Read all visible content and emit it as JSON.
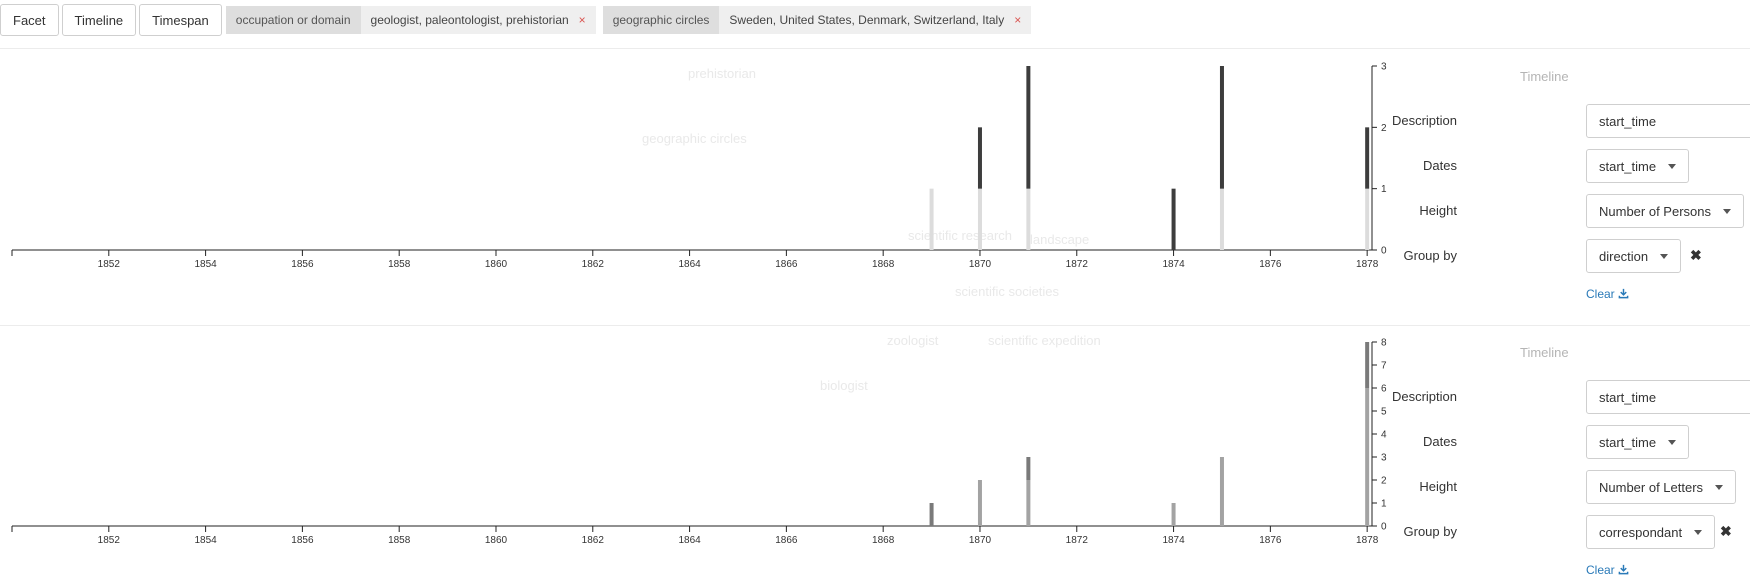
{
  "toolbar": {
    "buttons": [
      "Facet",
      "Timeline",
      "Timespan"
    ],
    "filters": [
      {
        "key": "occupation or domain",
        "value": "geologist, paleontologist, prehistorian",
        "remove": "×"
      },
      {
        "key": "geographic circles",
        "value": "Sweden, United States, Denmark, Switzerland, Italy",
        "remove": "×"
      }
    ]
  },
  "ghost_labels": [
    "prehistorian",
    "geographic circles",
    "scientific research",
    "landscape",
    "scientific societies",
    "zoologist",
    "scientific expedition",
    "biologist"
  ],
  "colors": {
    "series_dark": "#3d3d3d",
    "series_light": "#dcdcdc",
    "series_mid": "#9b9b9b",
    "accent": "#2a7ab8",
    "remove_x": "#d9534f"
  },
  "panels": [
    {
      "title": "Timeline",
      "description_label": "Description",
      "description_value": "start_time",
      "dates_label": "Dates",
      "dates_value": "start_time",
      "height_label": "Height",
      "height_value": "Number of Persons",
      "groupby_label": "Group by",
      "groupby_value": "direction",
      "remove_icon": "✖",
      "clear_label": "Clear"
    },
    {
      "title": "Timeline",
      "description_label": "Description",
      "description_value": "start_time",
      "dates_label": "Dates",
      "dates_value": "start_time",
      "height_label": "Height",
      "height_value": "Number of Letters",
      "groupby_label": "Group by",
      "groupby_value": "correspondant",
      "remove_icon": "✖",
      "clear_label": "Clear"
    }
  ],
  "chart_data": [
    {
      "type": "bar",
      "x_ticks": [
        1852,
        1854,
        1856,
        1858,
        1860,
        1862,
        1864,
        1866,
        1868,
        1870,
        1872,
        1874,
        1876,
        1878
      ],
      "xlim": [
        1850,
        1878.1
      ],
      "ylim": [
        0,
        3
      ],
      "y_ticks": [
        0,
        1,
        2,
        3
      ],
      "stacked": true,
      "series": [
        {
          "color": "#dcdcdc",
          "points": [
            [
              1869,
              1
            ],
            [
              1870,
              1
            ],
            [
              1871,
              1
            ],
            [
              1875,
              1
            ],
            [
              1878,
              1
            ]
          ]
        },
        {
          "color": "#3d3d3d",
          "points": [
            [
              1870,
              1
            ],
            [
              1871,
              2
            ],
            [
              1874,
              1
            ],
            [
              1875,
              2
            ],
            [
              1878,
              1
            ]
          ]
        }
      ]
    },
    {
      "type": "bar",
      "x_ticks": [
        1852,
        1854,
        1856,
        1858,
        1860,
        1862,
        1864,
        1866,
        1868,
        1870,
        1872,
        1874,
        1876,
        1878
      ],
      "xlim": [
        1850,
        1878.1
      ],
      "ylim": [
        0,
        8
      ],
      "y_ticks": [
        0,
        1,
        2,
        3,
        4,
        5,
        6,
        7,
        8
      ],
      "stacked": true,
      "series": [
        {
          "color": "#a3a3a3",
          "points": [
            [
              1870,
              2
            ],
            [
              1871,
              2
            ],
            [
              1874,
              1
            ],
            [
              1875,
              3
            ],
            [
              1878,
              6
            ]
          ]
        },
        {
          "color": "#7a7a7a",
          "points": [
            [
              1869,
              1
            ],
            [
              1871,
              1
            ],
            [
              1878,
              2
            ]
          ]
        }
      ]
    }
  ]
}
